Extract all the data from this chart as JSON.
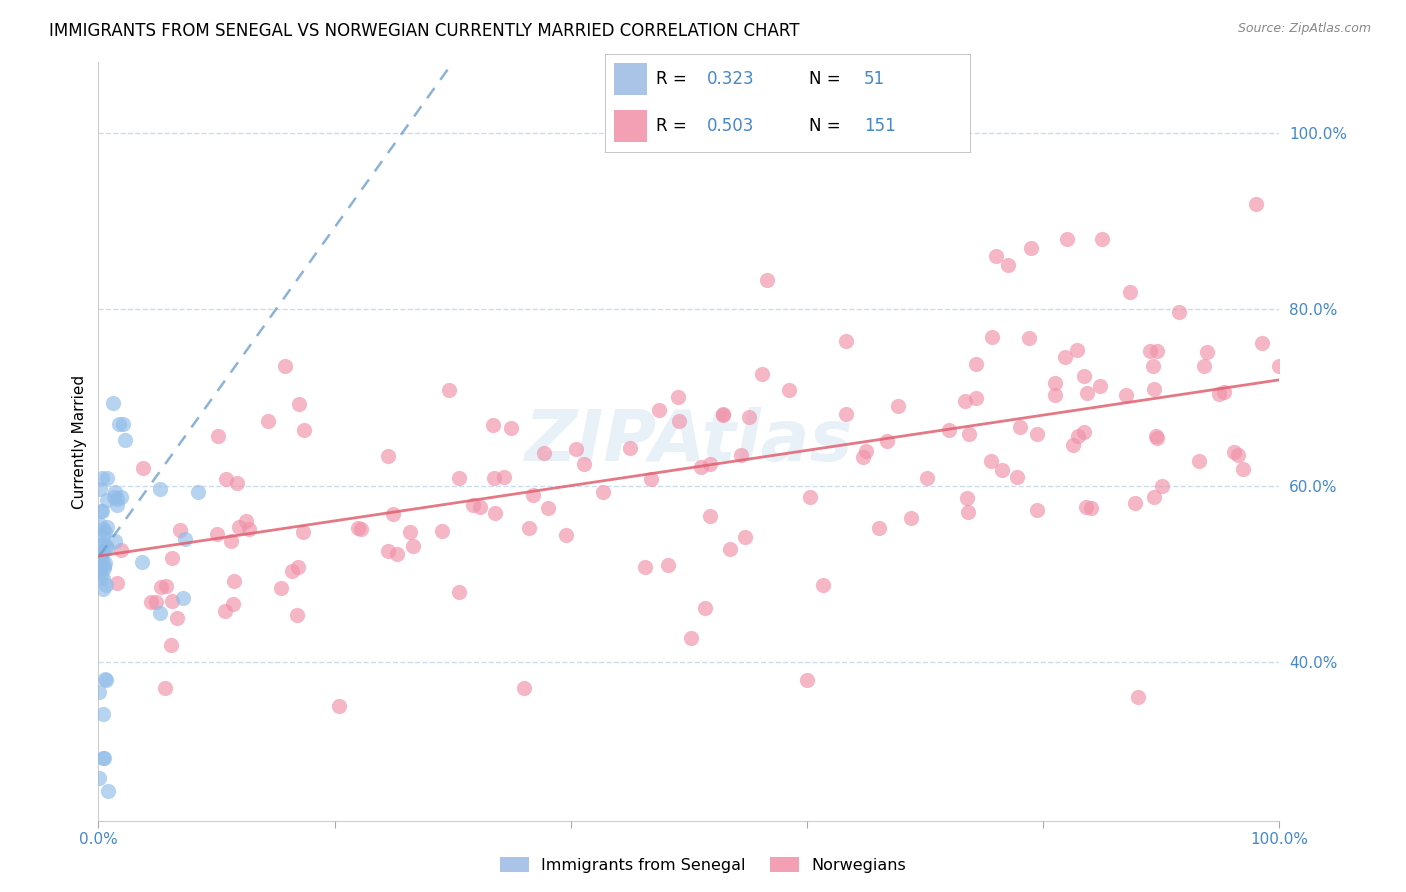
{
  "title": "IMMIGRANTS FROM SENEGAL VS NORWEGIAN CURRENTLY MARRIED CORRELATION CHART",
  "source": "Source: ZipAtlas.com",
  "ylabel": "Currently Married",
  "watermark": "ZIPAtlas",
  "blue_R": 0.323,
  "blue_N": 51,
  "pink_R": 0.503,
  "pink_N": 151,
  "blue_color": "#90bce8",
  "pink_color": "#f090a8",
  "blue_line_color": "#6699cc",
  "pink_line_color": "#e06070",
  "grid_color": "#ccddee",
  "grid_style": "--",
  "background_color": "#ffffff",
  "scatter_alpha": 0.65,
  "scatter_size": 120,
  "xlim": [
    0.0,
    1.0
  ],
  "ylim": [
    0.22,
    1.08
  ],
  "ytick_positions": [
    0.4,
    0.6,
    0.8,
    1.0
  ],
  "ytick_labels": [
    "40.0%",
    "60.0%",
    "80.0%",
    "100.0%"
  ],
  "xtick_positions": [
    0.0,
    0.2,
    0.4,
    0.6,
    0.8,
    1.0
  ],
  "xtick_labels_show": [
    "0.0%",
    "100.0%"
  ],
  "title_fontsize": 12,
  "tick_fontsize": 11,
  "tick_color": "#4488cc",
  "source_fontsize": 9,
  "legend_fontsize": 13
}
